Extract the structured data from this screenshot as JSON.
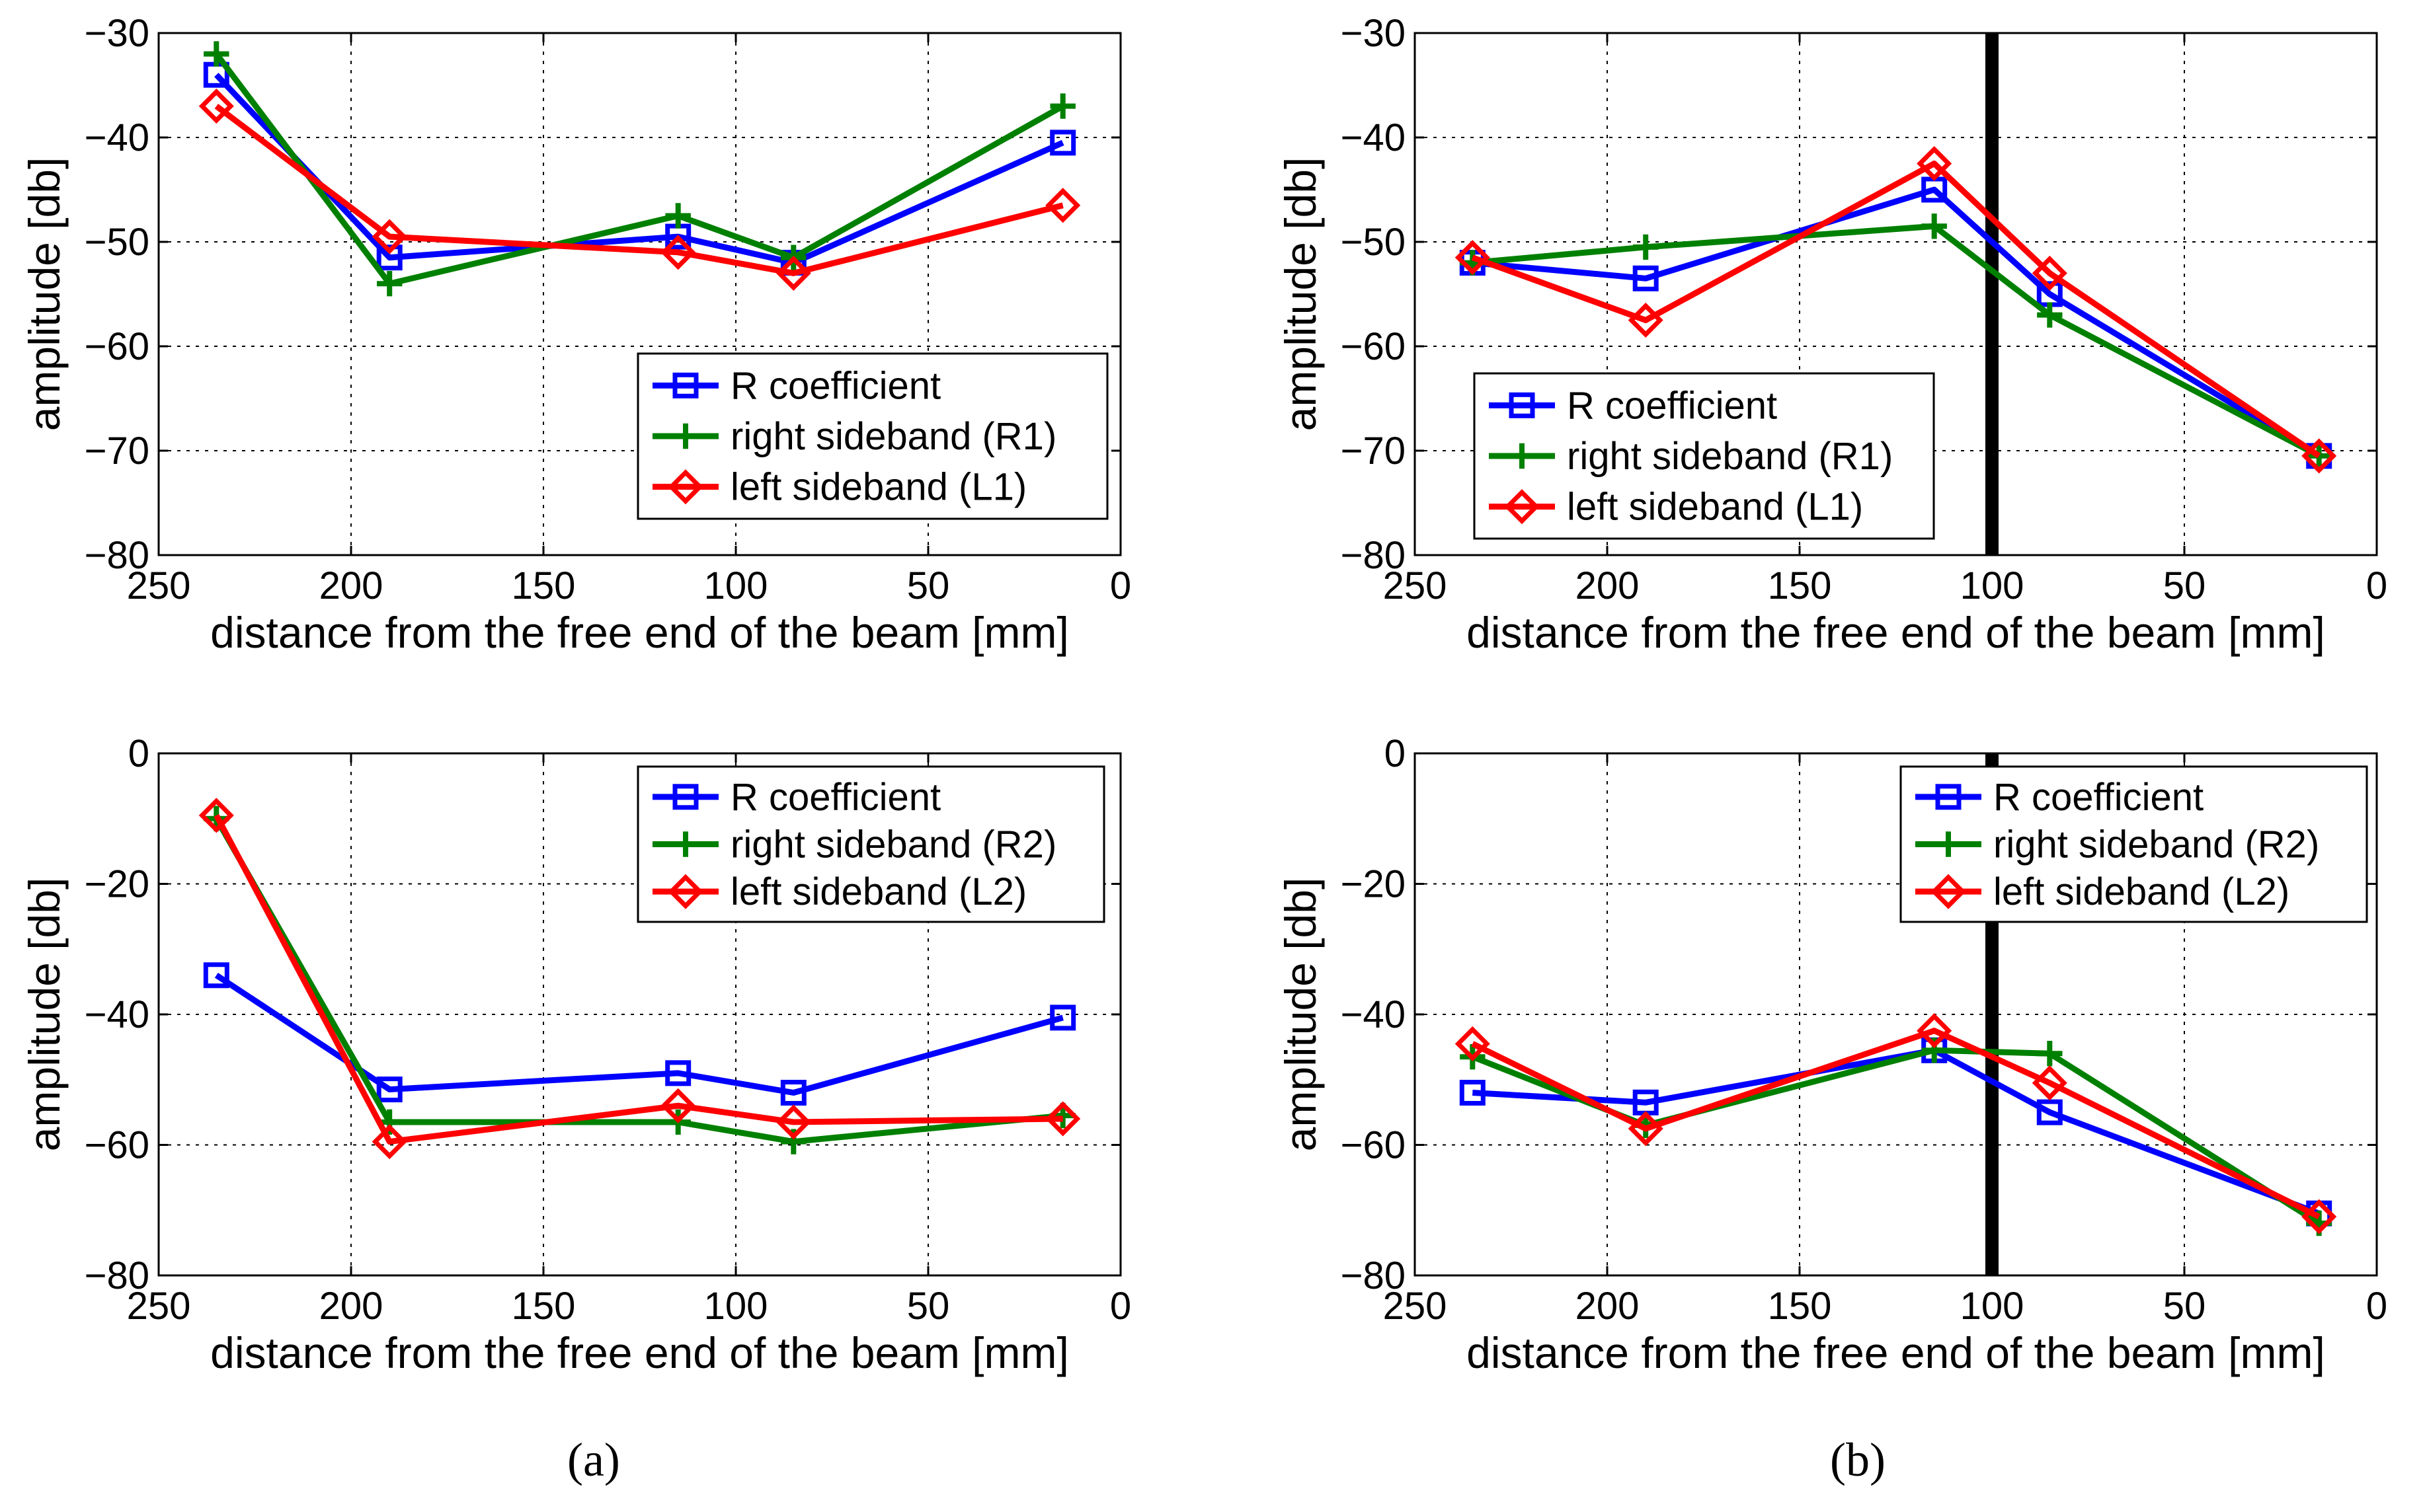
{
  "colors": {
    "R": "#0000ff",
    "G": "#008000",
    "L": "#ff0000",
    "marker_line": "#000000"
  },
  "captions": {
    "a": "(a)",
    "b": "(b)"
  },
  "chart_data": [
    {
      "id": "a-top",
      "type": "line",
      "xlabel": "distance from the free end of the beam [mm]",
      "ylabel": "amplitude [db]",
      "xlim": [
        250,
        0
      ],
      "ylim": [
        -80,
        -30
      ],
      "xticks": [
        250,
        200,
        150,
        100,
        50,
        0
      ],
      "yticks": [
        -30,
        -40,
        -50,
        -60,
        -70,
        -80
      ],
      "grid": true,
      "legend_position": "lower-right",
      "vertical_marker": null,
      "x": [
        235,
        190,
        115,
        85,
        15
      ],
      "series": [
        {
          "name": "R coefficient",
          "color_key": "R",
          "marker": "square",
          "values": [
            -34,
            -51.5,
            -49.5,
            -52,
            -40.5
          ]
        },
        {
          "name": "right sideband (R1)",
          "color_key": "G",
          "marker": "plus",
          "values": [
            -32,
            -54,
            -47.5,
            -51.5,
            -37
          ]
        },
        {
          "name": "left sideband (L1)",
          "color_key": "L",
          "marker": "diamond",
          "values": [
            -37,
            -49.5,
            -51,
            -53,
            -46.5
          ]
        }
      ]
    },
    {
      "id": "b-top",
      "type": "line",
      "xlabel": "distance from the free end of the beam [mm]",
      "ylabel": "amplitude [db]",
      "xlim": [
        250,
        0
      ],
      "ylim": [
        -80,
        -30
      ],
      "xticks": [
        250,
        200,
        150,
        100,
        50,
        0
      ],
      "yticks": [
        -30,
        -40,
        -50,
        -60,
        -70,
        -80
      ],
      "grid": true,
      "legend_position": "lower-left",
      "vertical_marker": 100,
      "x": [
        235,
        190,
        115,
        85,
        15
      ],
      "series": [
        {
          "name": "R coefficient",
          "color_key": "R",
          "marker": "square",
          "values": [
            -52,
            -53.5,
            -45,
            -55,
            -70.5
          ]
        },
        {
          "name": "right sideband (R1)",
          "color_key": "G",
          "marker": "plus",
          "values": [
            -52,
            -50.5,
            -48.5,
            -57,
            -70.5
          ]
        },
        {
          "name": "left sideband (L1)",
          "color_key": "L",
          "marker": "diamond",
          "values": [
            -51.5,
            -57.5,
            -42.5,
            -53,
            -70.5
          ]
        }
      ]
    },
    {
      "id": "a-bottom",
      "type": "line",
      "xlabel": "distance from the free end of the beam [mm]",
      "ylabel": "amplitude [db]",
      "xlim": [
        250,
        0
      ],
      "ylim": [
        -80,
        0
      ],
      "xticks": [
        250,
        200,
        150,
        100,
        50,
        0
      ],
      "yticks": [
        0,
        -20,
        -40,
        -60,
        -80
      ],
      "grid": true,
      "legend_position": "top-right",
      "vertical_marker": null,
      "x": [
        235,
        190,
        115,
        85,
        15
      ],
      "series": [
        {
          "name": "R coefficient",
          "color_key": "R",
          "marker": "square",
          "values": [
            -34,
            -51.5,
            -49,
            -52,
            -40.5
          ]
        },
        {
          "name": "right sideband (R2)",
          "color_key": "G",
          "marker": "plus",
          "values": [
            -10,
            -56.5,
            -56.5,
            -59.5,
            -55.5
          ]
        },
        {
          "name": "left sideband (L2)",
          "color_key": "L",
          "marker": "diamond",
          "values": [
            -9.5,
            -59.5,
            -54,
            -56.5,
            -56
          ]
        }
      ]
    },
    {
      "id": "b-bottom",
      "type": "line",
      "xlabel": "distance from the free end of the beam [mm]",
      "ylabel": "amplitude [db]",
      "xlim": [
        250,
        0
      ],
      "ylim": [
        -80,
        0
      ],
      "xticks": [
        250,
        200,
        150,
        100,
        50,
        0
      ],
      "yticks": [
        0,
        -20,
        -40,
        -60,
        -80
      ],
      "grid": true,
      "legend_position": "top-right",
      "vertical_marker": 100,
      "x": [
        235,
        190,
        115,
        85,
        15
      ],
      "series": [
        {
          "name": "R coefficient",
          "color_key": "R",
          "marker": "square",
          "values": [
            -52,
            -53.5,
            -45.5,
            -55,
            -70.5
          ]
        },
        {
          "name": "right sideband (R2)",
          "color_key": "G",
          "marker": "plus",
          "values": [
            -46.5,
            -57,
            -45.5,
            -46,
            -72
          ]
        },
        {
          "name": "left sideband (L2)",
          "color_key": "L",
          "marker": "diamond",
          "values": [
            -44.5,
            -57.5,
            -42.5,
            -50.5,
            -71
          ]
        }
      ]
    }
  ]
}
